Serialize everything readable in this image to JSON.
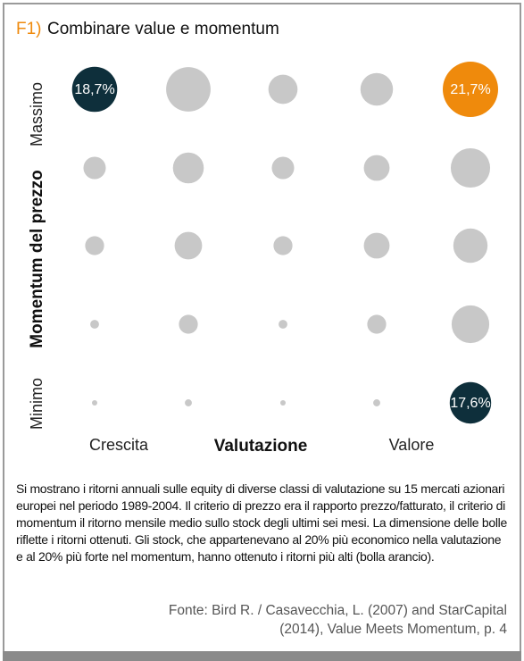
{
  "chart_data": {
    "type": "bubble-grid",
    "title_number": "F1)",
    "title": "Combinare value e momentum",
    "x_label": "Valutazione",
    "y_label": "Momentum del prezzo",
    "x_categories": [
      "Crescita",
      null,
      null,
      null,
      "Valore"
    ],
    "y_categories": [
      "Massimo",
      null,
      null,
      null,
      "Minimo"
    ],
    "values": [
      [
        18.7,
        18.5,
        14,
        15,
        21.7
      ],
      [
        12,
        14.5,
        12,
        13,
        17
      ],
      [
        11,
        13.5,
        11,
        13,
        15.5
      ],
      [
        8,
        11,
        8,
        11,
        16.5
      ],
      [
        7,
        7.5,
        7,
        7.5,
        17.6
      ]
    ],
    "value_labels": [
      [
        "18,7%",
        null,
        null,
        null,
        "21,7%"
      ],
      [
        null,
        null,
        null,
        null,
        null
      ],
      [
        null,
        null,
        null,
        null,
        null
      ],
      [
        null,
        null,
        null,
        null,
        null
      ],
      [
        null,
        null,
        null,
        null,
        "17,6%"
      ]
    ],
    "colors": [
      [
        "#0e2f3b",
        "#c8c8c8",
        "#c8c8c8",
        "#c8c8c8",
        "#ef8a0c"
      ],
      [
        "#c8c8c8",
        "#c8c8c8",
        "#c8c8c8",
        "#c8c8c8",
        "#c8c8c8"
      ],
      [
        "#c8c8c8",
        "#c8c8c8",
        "#c8c8c8",
        "#c8c8c8",
        "#c8c8c8"
      ],
      [
        "#c8c8c8",
        "#c8c8c8",
        "#c8c8c8",
        "#c8c8c8",
        "#c8c8c8"
      ],
      [
        "#c8c8c8",
        "#c8c8c8",
        "#c8c8c8",
        "#c8c8c8",
        "#0e2f3b"
      ]
    ],
    "caption": "Si mostrano i ritorni annuali sulle equity di diverse classi di valutazione su 15 mercati azionari europei nel periodo 1989-2004. Il criterio di prezzo era il rapporto prezzo/fatturato, il criterio di momentum il ritorno mensile medio sullo stock degli ultimi sei mesi. La dimensione delle bolle riflette i ritorni ottenuti. Gli stock, che appartenevano al 20% più economico nella valutazione e al 20% più forte nel momentum, hanno ottenuto i ritorni più alti (bolla arancio).",
    "source": "Fonte: Bird R. / Casavecchia, L. (2007) and StarCapital (2014), Value Meets Momentum, p. 4"
  }
}
